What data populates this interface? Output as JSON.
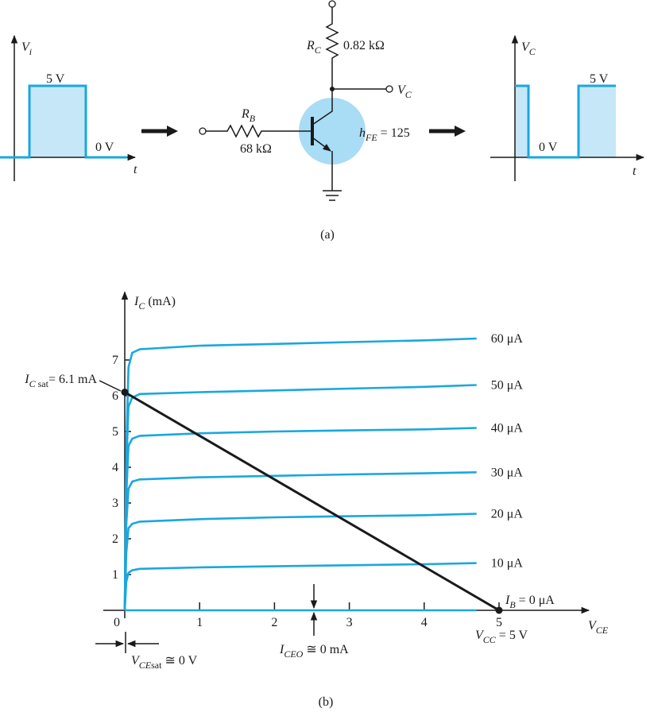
{
  "diagram": {
    "labels": [
      [
        {
          "i": "V"
        },
        {
          "sub": "i"
        }
      ],
      [
        {
          "t": "5 V"
        }
      ],
      [
        {
          "t": "0 V"
        }
      ],
      [
        {
          "i": "t"
        }
      ],
      [
        {
          "i": "R"
        },
        {
          "sub": "C"
        }
      ],
      [
        {
          "t": "0.82  kΩ"
        }
      ],
      [
        {
          "i": "V"
        },
        {
          "sub": "C"
        }
      ],
      [
        {
          "i": "R"
        },
        {
          "sub": "B"
        }
      ],
      [
        {
          "t": "68  kΩ"
        }
      ],
      [
        {
          "i": "h"
        },
        {
          "sub": "FE"
        },
        {
          "t": " = 125"
        }
      ],
      [
        {
          "i": "V"
        },
        {
          "sub": "C"
        }
      ],
      [
        {
          "t": "5 V"
        }
      ],
      [
        {
          "t": "0 V"
        }
      ],
      [
        {
          "i": "t"
        }
      ]
    ],
    "caption": "(a)"
  },
  "chart_data": {
    "type": "line",
    "x": [
      0,
      0.02,
      0.05,
      0.1,
      0.2,
      1,
      2,
      3,
      4,
      4.7
    ],
    "series": [
      {
        "name": "60 μA",
        "color": "#1aa7e0",
        "values": [
          0,
          4.5,
          6.8,
          7.2,
          7.3,
          7.4,
          7.45,
          7.5,
          7.55,
          7.6
        ]
      },
      {
        "name": "50 μA",
        "color": "#1aa7e0",
        "values": [
          0,
          4.0,
          5.7,
          5.95,
          6.05,
          6.1,
          6.15,
          6.2,
          6.25,
          6.3
        ]
      },
      {
        "name": "40 μA",
        "color": "#1aa7e0",
        "values": [
          0,
          3.2,
          4.6,
          4.8,
          4.88,
          4.95,
          5.0,
          5.03,
          5.06,
          5.1
        ]
      },
      {
        "name": "30 μA",
        "color": "#1aa7e0",
        "values": [
          0,
          2.4,
          3.4,
          3.6,
          3.66,
          3.72,
          3.76,
          3.8,
          3.83,
          3.86
        ]
      },
      {
        "name": "20 μA",
        "color": "#1aa7e0",
        "values": [
          0,
          1.6,
          2.3,
          2.42,
          2.48,
          2.55,
          2.6,
          2.63,
          2.66,
          2.7
        ]
      },
      {
        "name": "10 μA",
        "color": "#1aa7e0",
        "values": [
          0,
          0.8,
          1.05,
          1.12,
          1.16,
          1.2,
          1.23,
          1.26,
          1.29,
          1.32
        ]
      },
      {
        "name": [
          {
            "i": "I"
          },
          {
            "sub": "B"
          },
          {
            "t": " = 0 μA"
          }
        ],
        "color": "#1aa7e0",
        "values": [
          0,
          0,
          0,
          0,
          0,
          0,
          0,
          0,
          0,
          0
        ]
      }
    ],
    "xlim": [
      0,
      6.2
    ],
    "ylim": [
      0,
      8.9
    ],
    "xticks": [
      0,
      1,
      2,
      3,
      4,
      5
    ],
    "yticks": [
      1,
      2,
      3,
      4,
      5,
      6,
      7
    ],
    "x_label": [
      {
        "i": "V"
      },
      {
        "sub": "CE"
      }
    ],
    "y_label": [
      {
        "i": "I"
      },
      {
        "sub": "C"
      },
      {
        "t": "  (mA)"
      }
    ],
    "load_line": {
      "x": [
        0,
        5
      ],
      "y": [
        6.1,
        0
      ],
      "color": "#1a1a1a"
    },
    "annotations": [
      [
        {
          "i": "I"
        },
        {
          "sub": "C"
        },
        {
          "subr": " sat"
        },
        {
          "t": "= 6.1 mA"
        }
      ],
      [
        {
          "i": "V"
        },
        {
          "sub": "CE"
        },
        {
          "subr": "sat"
        },
        {
          "t": " ≅ 0 V"
        }
      ],
      [
        {
          "i": "I"
        },
        {
          "sub": "CEO"
        },
        {
          "t": " ≅ 0 mA"
        }
      ],
      [
        {
          "i": "V"
        },
        {
          "sub": "CC"
        },
        {
          "t": " = 5 V"
        }
      ]
    ],
    "caption": "(b)"
  }
}
